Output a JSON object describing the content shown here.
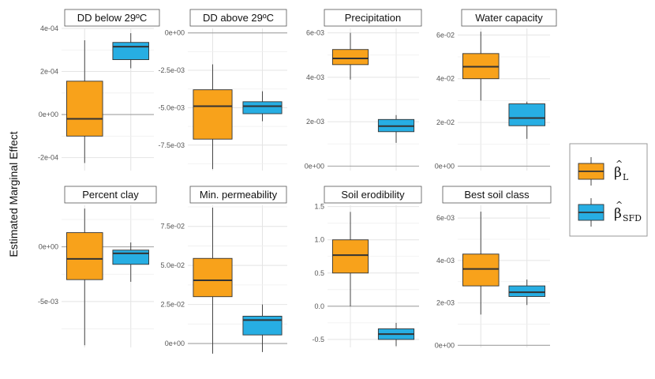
{
  "y_axis_label": "Estimated Marginal Effect",
  "legend": [
    {
      "symbol": "β",
      "hat": "^",
      "subscript": "L",
      "color": "#F8A21B"
    },
    {
      "symbol": "β",
      "hat": "^",
      "subscript": "SFD",
      "color": "#27AEE3"
    }
  ],
  "chart_data": [
    {
      "type": "box",
      "title": "DD below 29ºC",
      "ylim": [
        -0.00026,
        0.0004
      ],
      "yticks": [
        "-2e-04",
        "0e+00",
        "2e-04",
        "4e-04"
      ],
      "ytick_values": [
        -0.0002,
        0,
        0.0002,
        0.0004
      ],
      "series": [
        {
          "subscript": "L",
          "color": "#F8A21B",
          "min": -0.000225,
          "q1": -0.0001,
          "median": -2e-05,
          "q3": 0.000155,
          "max": 0.000345
        },
        {
          "subscript": "SFD",
          "color": "#27AEE3",
          "min": 0.000215,
          "q1": 0.000255,
          "median": 0.000315,
          "q3": 0.000335,
          "max": 0.000378
        }
      ]
    },
    {
      "type": "box",
      "title": "DD above 29ºC",
      "ylim": [
        -0.0092,
        0.0003
      ],
      "yticks": [
        "-7.5e-03",
        "-5.0e-03",
        "-2.5e-03",
        "0e+00"
      ],
      "ytick_values": [
        -0.0075,
        -0.005,
        -0.0025,
        0
      ],
      "series": [
        {
          "subscript": "L",
          "color": "#F8A21B",
          "min": -0.0091,
          "q1": -0.0071,
          "median": -0.0049,
          "q3": -0.0038,
          "max": -0.0021
        },
        {
          "subscript": "SFD",
          "color": "#27AEE3",
          "min": -0.0059,
          "q1": -0.0054,
          "median": -0.0049,
          "q3": -0.0046,
          "max": -0.0039
        }
      ]
    },
    {
      "type": "box",
      "title": "Precipitation",
      "ylim": [
        -0.0002,
        0.0062
      ],
      "yticks": [
        "0e+00",
        "2e-03",
        "4e-03",
        "6e-03"
      ],
      "ytick_values": [
        0,
        0.002,
        0.004,
        0.006
      ],
      "series": [
        {
          "subscript": "L",
          "color": "#F8A21B",
          "min": 0.0039,
          "q1": 0.00457,
          "median": 0.00485,
          "q3": 0.00525,
          "max": 0.006
        },
        {
          "subscript": "SFD",
          "color": "#27AEE3",
          "min": 0.00105,
          "q1": 0.00155,
          "median": 0.0018,
          "q3": 0.0021,
          "max": 0.0023
        }
      ]
    },
    {
      "type": "box",
      "title": "Water capacity",
      "ylim": [
        -0.002,
        0.063
      ],
      "yticks": [
        "0e+00",
        "2e-02",
        "4e-02",
        "6e-02"
      ],
      "ytick_values": [
        0,
        0.02,
        0.04,
        0.06
      ],
      "series": [
        {
          "subscript": "L",
          "color": "#F8A21B",
          "min": 0.03,
          "q1": 0.04,
          "median": 0.0455,
          "q3": 0.0515,
          "max": 0.0615
        },
        {
          "subscript": "SFD",
          "color": "#27AEE3",
          "min": 0.0125,
          "q1": 0.0185,
          "median": 0.022,
          "q3": 0.0285,
          "max": 0.0295
        }
      ]
    },
    {
      "type": "box",
      "title": "Percent clay",
      "ylim": [
        -0.0092,
        0.0038
      ],
      "yticks": [
        "-5e-03",
        "0e+00"
      ],
      "ytick_values": [
        -0.005,
        0
      ],
      "series": [
        {
          "subscript": "L",
          "color": "#F8A21B",
          "min": -0.009,
          "q1": -0.003,
          "median": -0.0011,
          "q3": 0.0013,
          "max": 0.0035
        },
        {
          "subscript": "SFD",
          "color": "#27AEE3",
          "min": -0.0032,
          "q1": -0.0016,
          "median": -0.0006,
          "q3": -0.0003,
          "max": 0.0004
        }
      ]
    },
    {
      "type": "box",
      "title": "Min. permeability",
      "ylim": [
        -0.0025,
        0.0885
      ],
      "yticks": [
        "0e+00",
        "2.5e-02",
        "5.0e-02",
        "7.5e-02"
      ],
      "ytick_values": [
        0,
        0.025,
        0.05,
        0.075
      ],
      "series": [
        {
          "subscript": "L",
          "color": "#F8A21B",
          "min": -0.0065,
          "q1": 0.03,
          "median": 0.0405,
          "q3": 0.0545,
          "max": 0.087
        },
        {
          "subscript": "SFD",
          "color": "#27AEE3",
          "min": -0.0055,
          "q1": 0.0055,
          "median": 0.015,
          "q3": 0.0175,
          "max": 0.025
        }
      ]
    },
    {
      "type": "box",
      "title": "Soil erodibility",
      "ylim": [
        -0.62,
        1.52
      ],
      "yticks": [
        "-0.5",
        "0.0",
        "0.5",
        "1.0",
        "1.5"
      ],
      "ytick_values": [
        -0.5,
        0,
        0.5,
        1,
        1.5
      ],
      "series": [
        {
          "subscript": "L",
          "color": "#F8A21B",
          "min": 0.0,
          "q1": 0.5,
          "median": 0.77,
          "q3": 1.0,
          "max": 1.42
        },
        {
          "subscript": "SFD",
          "color": "#27AEE3",
          "min": -0.6,
          "q1": -0.5,
          "median": -0.42,
          "q3": -0.34,
          "max": -0.25
        }
      ]
    },
    {
      "type": "box",
      "title": "Best soil class",
      "ylim": [
        -0.0001,
        0.0066
      ],
      "yticks": [
        "0e+00",
        "2e-03",
        "4e-03",
        "6e-03"
      ],
      "ytick_values": [
        0,
        0.002,
        0.004,
        0.006
      ],
      "series": [
        {
          "subscript": "L",
          "color": "#F8A21B",
          "min": 0.00145,
          "q1": 0.0028,
          "median": 0.0036,
          "q3": 0.0043,
          "max": 0.0063
        },
        {
          "subscript": "SFD",
          "color": "#27AEE3",
          "min": 0.0019,
          "q1": 0.0023,
          "median": 0.0025,
          "q3": 0.0028,
          "max": 0.0031
        }
      ]
    }
  ]
}
